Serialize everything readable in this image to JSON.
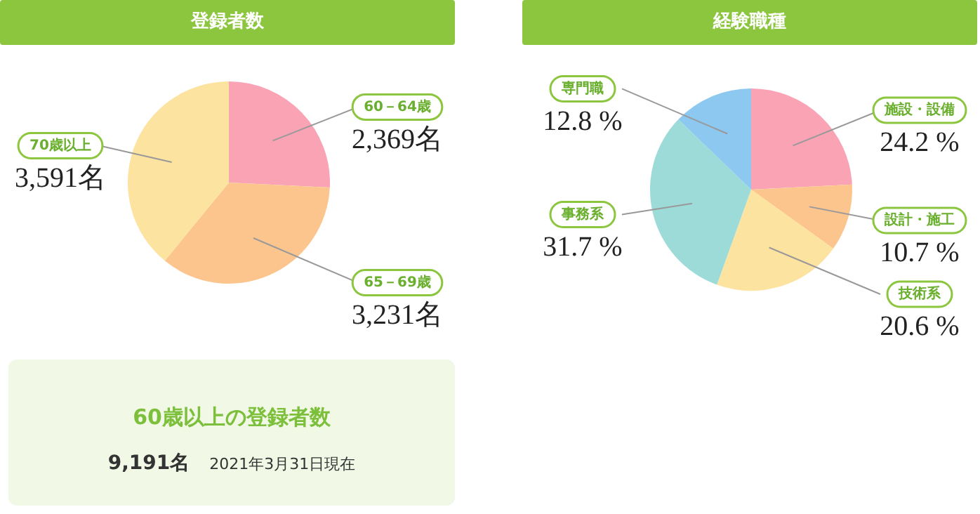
{
  "chart_data": [
    {
      "type": "pie",
      "title": "登録者数",
      "categories": [
        "60－64歳",
        "65－69歳",
        "70歳以上"
      ],
      "values": [
        2369,
        3231,
        3591
      ],
      "colors": [
        "#f9a3b4",
        "#fdc58e",
        "#fde3a0"
      ],
      "value_labels": [
        "2,369名",
        "3,231名",
        "3,591名"
      ]
    },
    {
      "type": "pie",
      "title": "経験職種",
      "categories": [
        "施設・設備",
        "設計・施工",
        "技術系",
        "事務系",
        "専門職"
      ],
      "values": [
        24.2,
        10.7,
        20.6,
        31.7,
        12.8
      ],
      "colors": [
        "#f9a3b4",
        "#fdc58e",
        "#fde3a0",
        "#9ddbd9",
        "#8cc8ef"
      ],
      "value_labels": [
        "24.2 %",
        "10.7 %",
        "20.6 %",
        "31.7 %",
        "12.8 %"
      ]
    },
    {
      "type": "other",
      "title": "60歳以上の登録者数",
      "annotations": [
        "9,191名",
        "2021年3月31日現在"
      ]
    }
  ]
}
